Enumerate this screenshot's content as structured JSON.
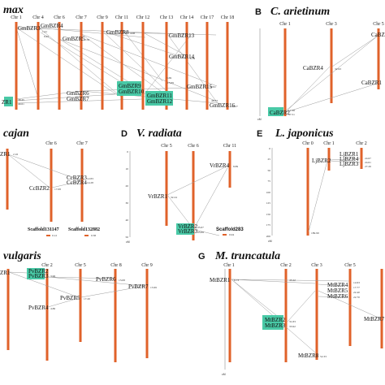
{
  "colors": {
    "chromosome": "#e0622a",
    "highlight": "#49c9a6",
    "link": "#9a9a9a"
  },
  "panels": {
    "A": {
      "title": "max",
      "chromosomes": [
        "Chr 1",
        "Chr 4",
        "Chr 6",
        "Chr 7",
        "Chr 9",
        "Chr 11",
        "Chr 12",
        "Chr 13",
        "Chr 14",
        "Chr 17",
        "Chr 18"
      ],
      "genes": [
        "GmBZR3",
        "GmBZR4",
        "GmBZR5",
        "GmBZR8",
        "GmBZR13",
        "GmBZR14",
        "GmBZR15",
        "GmBZR16",
        "GmBZR6",
        "GmBZR7",
        "GmBZR9",
        "GmBZR10",
        "GmBZR11",
        "GmBZR12",
        "ZR1"
      ],
      "positions": [
        "1.41",
        "8.45",
        "0.58",
        "4.08",
        "6.59",
        "3.69",
        "39.91",
        "48.33",
        "32.07",
        "15.69",
        "38.45",
        "49.61"
      ]
    },
    "B": {
      "label": "B",
      "title": "C. arietinum",
      "chromosomes": [
        "Chr 1",
        "Chr 3",
        "Chr 5"
      ],
      "genes": [
        "CaBZR3",
        "CaBZR4",
        "CaBZR1",
        "CaBZR2"
      ],
      "positions": [
        "32.93",
        "17.38",
        "47.51"
      ],
      "unit": "cM"
    },
    "C": {
      "title": "cajan",
      "chromosomes": [
        "Chr 6",
        "Chr 7"
      ],
      "genes": [
        "ZR1",
        "CcBZR2",
        "CcBZR3",
        "CcBZR4"
      ],
      "scaffolds": [
        "Scaffold131147",
        "Scaffold132882"
      ],
      "positions": [
        "2.16",
        "17.08",
        "12.83",
        "14.28",
        "0.12",
        "0.38"
      ]
    },
    "D": {
      "label": "D",
      "title": "V. radiata",
      "chromosomes": [
        "Chr 5",
        "Chr 6",
        "Chr 11"
      ],
      "genes": [
        "VrBZR4",
        "VrBZR1",
        "VrBZR2",
        "VrBZR3"
      ],
      "scaffolds": [
        "Scaffold283"
      ],
      "positions": [
        "8.89",
        "32.24",
        "35.67",
        "33.89",
        "0.04"
      ],
      "axis": [
        "0",
        "10",
        "20",
        "30",
        "40",
        "50"
      ],
      "unit": "cM"
    },
    "E": {
      "label": "E",
      "title": "L. japonicus",
      "chromosomes": [
        "Chr 0",
        "Chr 1",
        "Chr 2"
      ],
      "genes": [
        "LjBZR2",
        "LjBZR1",
        "LjBZR4",
        "LjBZR3"
      ],
      "positions": [
        "24.67",
        "24.61",
        "27.26",
        "189.99"
      ],
      "axis": [
        "0",
        "25",
        "50",
        "75",
        "100",
        "125",
        "150",
        "175",
        "200"
      ],
      "unit": "cM"
    },
    "F": {
      "title": "vulgaris",
      "chromosomes": [
        "Chr 2",
        "Chr 5",
        "Chr 8",
        "Chr 9"
      ],
      "genes": [
        "ZR1",
        "PvBZR2",
        "PvBZR3",
        "PvBZR4",
        "PvBZR5",
        "PvBZR6",
        "PvBZR7"
      ],
      "positions": [
        "3.96",
        "17.20",
        "13.08",
        "15.99",
        "4.86"
      ]
    },
    "G": {
      "label": "G",
      "title": "M. truncatula",
      "chromosomes": [
        "Chr 1",
        "Chr 2",
        "Chr 3",
        "Chr 5"
      ],
      "genes": [
        "MtBZR1",
        "MtBZR2",
        "MtBZR3",
        "MtBZR4",
        "MtBZR5",
        "MtBZR6",
        "MtBZR7",
        "MtBZR8"
      ],
      "positions": [
        "6.73",
        "43.42",
        "31.83",
        "33.92",
        "14.93",
        "17.77",
        "22.40",
        "22.70",
        "52.33"
      ],
      "unit": "cM"
    }
  }
}
